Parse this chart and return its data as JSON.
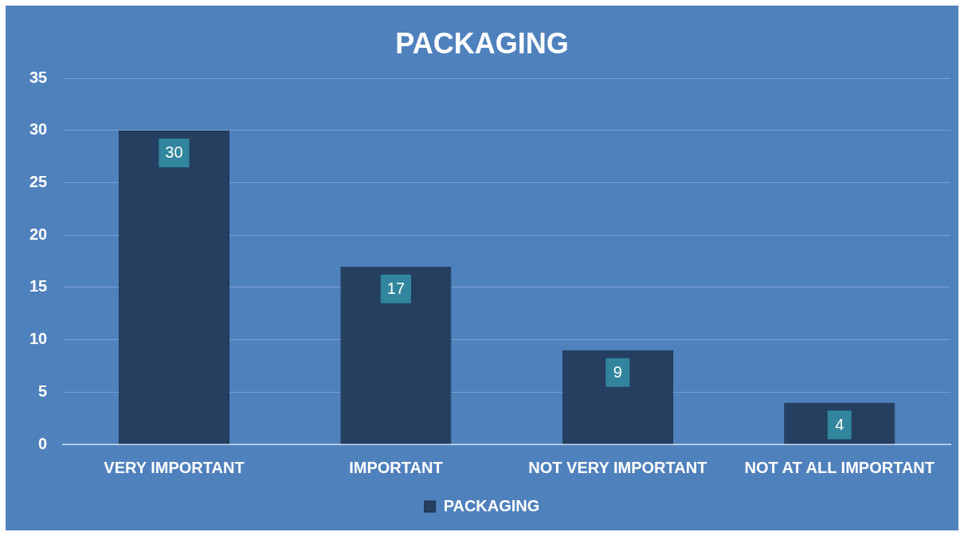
{
  "chart_data": {
    "type": "bar",
    "title": "PACKAGING",
    "categories": [
      "VERY IMPORTANT",
      "IMPORTANT",
      "NOT VERY IMPORTANT",
      "NOT AT ALL IMPORTANT"
    ],
    "series": [
      {
        "name": "PACKAGING",
        "color": "#243f60",
        "values": [
          30,
          17,
          9,
          4
        ]
      }
    ],
    "ylim": [
      0,
      35
    ],
    "yticks": [
      0,
      5,
      10,
      15,
      20,
      25,
      30,
      35
    ],
    "grid": "y",
    "legend": "bottom",
    "data_labels": true
  }
}
